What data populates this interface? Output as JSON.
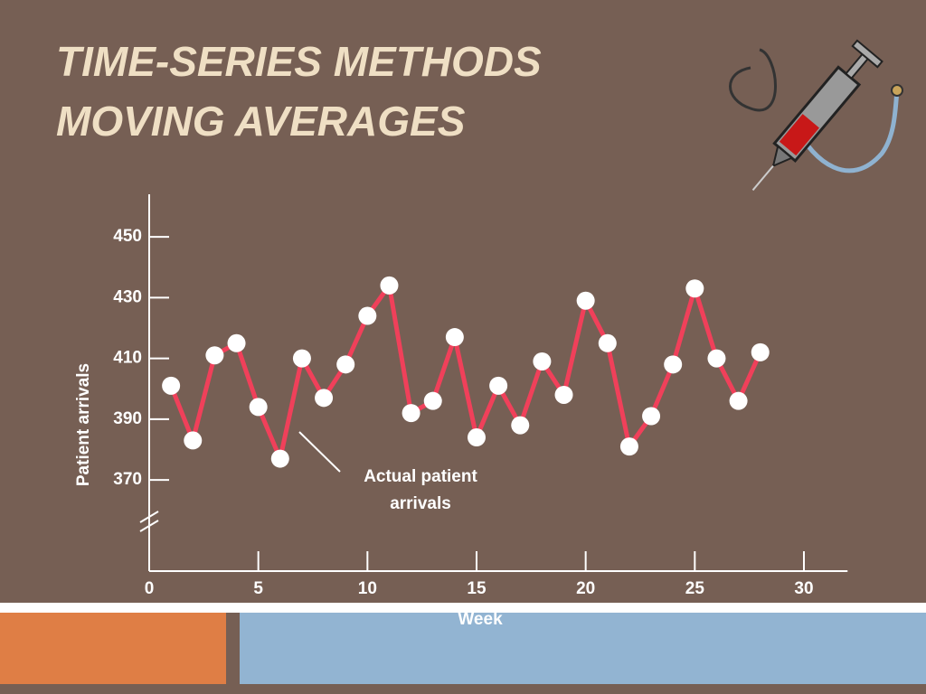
{
  "chart_data": {
    "type": "line",
    "title": "TIME-SERIES METHODS",
    "subtitle": "MOVING AVERAGES",
    "x_label": "Week",
    "y_label": "Patient arrivals",
    "annotation": [
      "Actual patient",
      "arrivals"
    ],
    "x": [
      1,
      2,
      3,
      4,
      5,
      6,
      7,
      8,
      9,
      10,
      11,
      12,
      13,
      14,
      15,
      16,
      17,
      18,
      19,
      20,
      21,
      22,
      23,
      24,
      25,
      26,
      27,
      28
    ],
    "series": [
      {
        "name": "Actual patient arrivals",
        "color": "#f0405a",
        "values": [
          401,
          383,
          411,
          415,
          394,
          377,
          410,
          397,
          408,
          424,
          434,
          392,
          396,
          417,
          384,
          401,
          388,
          409,
          398,
          429,
          415,
          381,
          391,
          408,
          433,
          410,
          396,
          412
        ]
      }
    ],
    "xlim": [
      0,
      32
    ],
    "xticks": [
      0,
      5,
      10,
      15,
      20,
      25,
      30
    ],
    "ylim": [
      340,
      464
    ],
    "yticks": [
      370,
      390,
      410,
      430,
      450
    ]
  }
}
